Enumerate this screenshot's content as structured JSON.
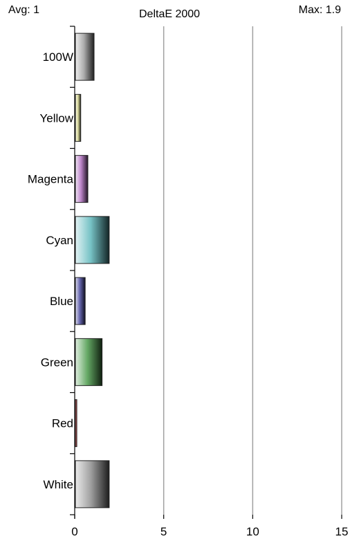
{
  "header": {
    "avg_label": "Avg: 1",
    "max_label": "Max: 1.9"
  },
  "chart_data": {
    "type": "bar",
    "orientation": "horizontal",
    "title": "DeltaE 2000",
    "categories": [
      "100W",
      "Yellow",
      "Magenta",
      "Cyan",
      "Blue",
      "Green",
      "Red",
      "White"
    ],
    "values": [
      1.05,
      0.3,
      0.7,
      1.9,
      0.55,
      1.5,
      0.08,
      1.9
    ],
    "colors": [
      "#9e9e9e",
      "#d8d890",
      "#b070c0",
      "#5fb8bc",
      "#4a4aa0",
      "#4a9a4a",
      "#d04040",
      "#909090"
    ],
    "xlim": [
      0,
      15
    ],
    "xticks": [
      0,
      5,
      10,
      15
    ],
    "grid": true
  }
}
